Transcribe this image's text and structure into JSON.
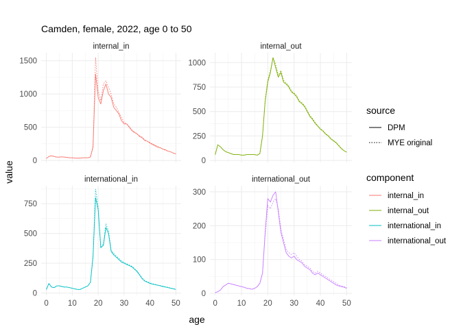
{
  "chart_data": {
    "type": "line",
    "title": "Camden, female, 2022, age 0 to 50",
    "xlabel": "age",
    "ylabel": "value",
    "legend": {
      "placement": "right",
      "source_title": "source",
      "source_items": [
        {
          "label": "DPM",
          "linetype": "solid"
        },
        {
          "label": "MYE original",
          "linetype": "dotted"
        }
      ],
      "component_title": "component",
      "component_items": [
        {
          "label": "internal_in",
          "color": "#F8766D"
        },
        {
          "label": "internal_out",
          "color": "#7CAE00"
        },
        {
          "label": "international_in",
          "color": "#00BFC4"
        },
        {
          "label": "international_out",
          "color": "#C77CFF"
        }
      ]
    },
    "xlim": [
      -2,
      52
    ],
    "x_ticks": [
      0,
      10,
      20,
      30,
      40,
      50
    ],
    "x": [
      0,
      1,
      2,
      3,
      4,
      5,
      6,
      7,
      8,
      9,
      10,
      11,
      12,
      13,
      14,
      15,
      16,
      17,
      18,
      19,
      20,
      21,
      22,
      23,
      24,
      25,
      26,
      27,
      28,
      29,
      30,
      31,
      32,
      33,
      34,
      35,
      36,
      37,
      38,
      39,
      40,
      41,
      42,
      43,
      44,
      45,
      46,
      47,
      48,
      49,
      50
    ],
    "panels": [
      {
        "name": "internal_in",
        "color": "#F8766D",
        "ylim": [
          -30,
          1620
        ],
        "y_ticks": [
          0,
          500,
          1000,
          1500
        ],
        "series": [
          {
            "source": "DPM",
            "values": [
              30,
              60,
              70,
              60,
              50,
              50,
              55,
              50,
              45,
              40,
              40,
              35,
              35,
              35,
              40,
              40,
              40,
              50,
              200,
              1300,
              950,
              850,
              1050,
              1150,
              1000,
              950,
              800,
              750,
              700,
              600,
              550,
              550,
              500,
              450,
              420,
              400,
              360,
              340,
              300,
              290,
              260,
              240,
              220,
              200,
              190,
              170,
              160,
              140,
              130,
              110,
              100
            ]
          },
          {
            "source": "MYE original",
            "values": [
              30,
              60,
              70,
              60,
              50,
              50,
              55,
              50,
              45,
              40,
              40,
              35,
              35,
              35,
              40,
              40,
              40,
              50,
              220,
              1550,
              1050,
              900,
              1150,
              1200,
              1100,
              1000,
              850,
              800,
              720,
              650,
              570,
              550,
              510,
              460,
              430,
              400,
              370,
              350,
              310,
              290,
              270,
              250,
              230,
              210,
              190,
              170,
              150,
              140,
              130,
              110,
              100
            ]
          }
        ]
      },
      {
        "name": "internal_out",
        "color": "#7CAE00",
        "ylim": [
          -20,
          1100
        ],
        "y_ticks": [
          0,
          250,
          500,
          750,
          1000
        ],
        "series": [
          {
            "source": "DPM",
            "values": [
              60,
              160,
              140,
              110,
              90,
              80,
              70,
              60,
              60,
              60,
              55,
              55,
              60,
              60,
              60,
              60,
              55,
              70,
              250,
              600,
              800,
              900,
              1050,
              950,
              850,
              900,
              800,
              780,
              750,
              700,
              680,
              650,
              600,
              580,
              550,
              500,
              450,
              420,
              380,
              350,
              320,
              300,
              270,
              250,
              220,
              200,
              180,
              150,
              120,
              100,
              85
            ]
          },
          {
            "source": "MYE original",
            "values": [
              60,
              160,
              140,
              110,
              90,
              80,
              70,
              60,
              60,
              60,
              55,
              55,
              60,
              60,
              60,
              60,
              55,
              70,
              260,
              620,
              820,
              920,
              1050,
              980,
              870,
              920,
              820,
              790,
              760,
              710,
              690,
              660,
              610,
              590,
              560,
              510,
              460,
              430,
              390,
              355,
              325,
              305,
              275,
              255,
              225,
              205,
              185,
              155,
              125,
              100,
              85
            ]
          }
        ]
      },
      {
        "name": "international_in",
        "color": "#00BFC4",
        "ylim": [
          -20,
          900
        ],
        "y_ticks": [
          0,
          250,
          500,
          750
        ],
        "series": [
          {
            "source": "DPM",
            "values": [
              30,
              80,
              50,
              45,
              60,
              60,
              55,
              50,
              50,
              45,
              40,
              35,
              30,
              30,
              40,
              50,
              60,
              90,
              300,
              800,
              700,
              380,
              400,
              550,
              500,
              350,
              320,
              300,
              280,
              260,
              250,
              240,
              230,
              220,
              200,
              180,
              150,
              120,
              100,
              90,
              80,
              75,
              70,
              65,
              60,
              55,
              50,
              45,
              40,
              35,
              30
            ]
          },
          {
            "source": "MYE original",
            "values": [
              30,
              80,
              50,
              45,
              60,
              60,
              55,
              50,
              50,
              45,
              40,
              35,
              30,
              30,
              40,
              50,
              60,
              90,
              320,
              870,
              720,
              390,
              410,
              580,
              520,
              360,
              330,
              310,
              290,
              270,
              255,
              245,
              235,
              225,
              205,
              185,
              155,
              125,
              105,
              95,
              85,
              78,
              72,
              67,
              62,
              57,
              52,
              47,
              42,
              37,
              32
            ]
          }
        ]
      },
      {
        "name": "international_out",
        "color": "#C77CFF",
        "ylim": [
          -6,
          318
        ],
        "y_ticks": [
          0,
          100,
          200,
          300
        ],
        "series": [
          {
            "source": "DPM",
            "values": [
              2,
              5,
              10,
              20,
              25,
              30,
              28,
              26,
              24,
              22,
              20,
              18,
              15,
              14,
              12,
              15,
              20,
              30,
              60,
              180,
              280,
              270,
              290,
              300,
              240,
              180,
              150,
              120,
              110,
              105,
              110,
              100,
              95,
              90,
              80,
              75,
              70,
              60,
              55,
              60,
              55,
              50,
              45,
              40,
              35,
              30,
              25,
              22,
              20,
              18,
              15
            ]
          },
          {
            "source": "MYE original",
            "values": [
              2,
              5,
              10,
              20,
              25,
              30,
              28,
              26,
              24,
              22,
              20,
              18,
              15,
              14,
              12,
              15,
              20,
              30,
              60,
              170,
              260,
              250,
              270,
              280,
              250,
              190,
              160,
              130,
              120,
              115,
              120,
              110,
              100,
              95,
              85,
              80,
              75,
              65,
              60,
              65,
              60,
              55,
              50,
              45,
              40,
              35,
              30,
              25,
              22,
              20,
              17
            ]
          }
        ]
      }
    ]
  }
}
